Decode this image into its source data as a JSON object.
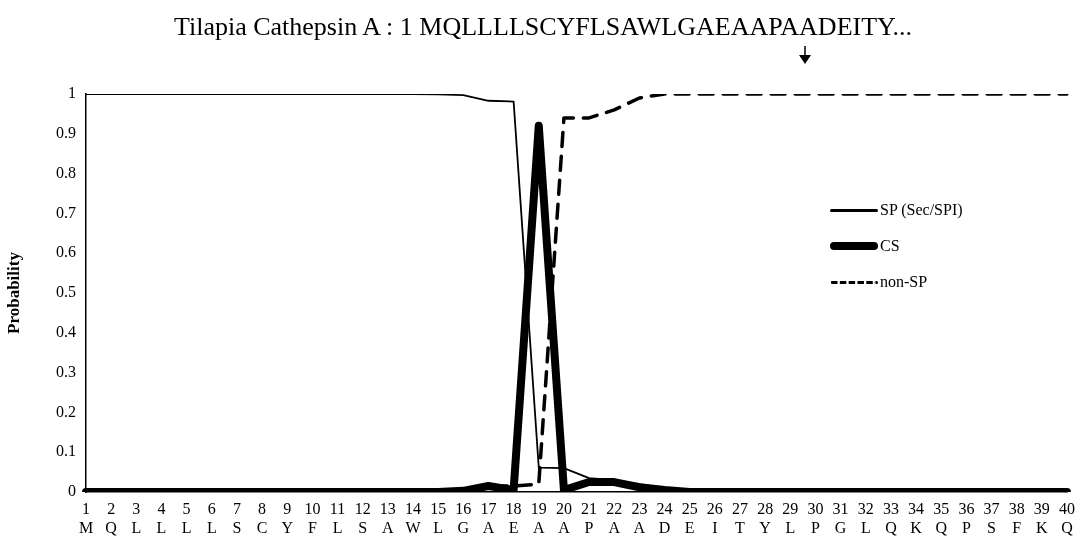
{
  "chart_data": {
    "type": "line",
    "title": "Tilapia Cathepsin A : 1 MQLLLLSCYFLSAWLGAEAAPAADEITY...",
    "ylabel": "Probability",
    "categories": [
      "1\nM",
      "2\nQ",
      "3\nL",
      "4\nL",
      "5\nL",
      "6\nL",
      "7\nS",
      "8\nC",
      "9\nY",
      "10\nF",
      "11\nL",
      "12\nS",
      "13\nA",
      "14\nW",
      "15\nL",
      "16\nG",
      "17\nA",
      "18\nE",
      "19\nA",
      "20\nA",
      "21\nP",
      "22\nA",
      "23\nA",
      "24\nD",
      "25\nE",
      "26\nI",
      "27\nT",
      "28\nY",
      "29\nL",
      "30\nP",
      "31\nG",
      "32\nL",
      "33\nQ",
      "34\nK",
      "35\nQ",
      "36\nP",
      "37\nS",
      "38\nF",
      "39\nK",
      "40\nQ"
    ],
    "series": [
      {
        "name": "SP (Sec/SPI)",
        "color": "#000000",
        "line_style": "solid",
        "values": [
          1,
          1,
          1,
          1,
          1,
          1,
          1,
          1,
          1,
          1,
          1,
          1,
          1,
          1,
          0.999,
          0.997,
          0.983,
          0.981,
          0.061,
          0.06,
          0.035,
          0.03,
          0.02,
          0.01,
          0.005,
          0,
          0,
          0,
          0,
          0,
          0,
          0,
          0,
          0,
          0,
          0,
          0,
          0,
          0,
          0
        ]
      },
      {
        "name": "CS",
        "color": "#000000",
        "line_style": "solid",
        "values": [
          0,
          0,
          0,
          0,
          0,
          0,
          0,
          0,
          0,
          0,
          0,
          0,
          0,
          0,
          0,
          0.003,
          0.015,
          0.005,
          0.92,
          0.005,
          0.025,
          0.025,
          0.012,
          0.005,
          0,
          0,
          0,
          0,
          0,
          0,
          0,
          0,
          0,
          0,
          0,
          0,
          0,
          0,
          0,
          0
        ]
      },
      {
        "name": "non-SP",
        "color": "#000000",
        "line_style": "dashed",
        "values": [
          0,
          0,
          0,
          0,
          0,
          0,
          0,
          0,
          0,
          0,
          0,
          0,
          0,
          0,
          0,
          0,
          0.015,
          0.015,
          0.02,
          0.94,
          0.94,
          0.96,
          0.99,
          1,
          1,
          1,
          1,
          1,
          1,
          1,
          1,
          1,
          1,
          1,
          1,
          1,
          1,
          1,
          1,
          1
        ]
      }
    ],
    "ylim": [
      0,
      1
    ],
    "yticks": [
      0,
      0.1,
      0.2,
      0.3,
      0.4,
      0.5,
      0.6,
      0.7,
      0.8,
      0.9,
      1
    ],
    "grid": false,
    "legend": "right",
    "marker": "none"
  }
}
